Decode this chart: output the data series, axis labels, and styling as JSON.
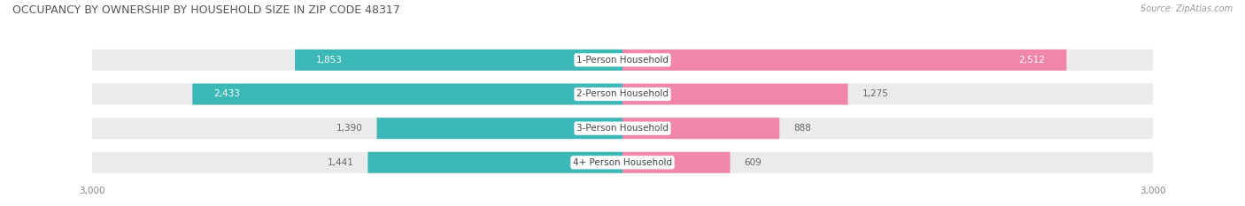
{
  "title": "OCCUPANCY BY OWNERSHIP BY HOUSEHOLD SIZE IN ZIP CODE 48317",
  "source": "Source: ZipAtlas.com",
  "categories": [
    "1-Person Household",
    "2-Person Household",
    "3-Person Household",
    "4+ Person Household"
  ],
  "owner_values": [
    1853,
    2433,
    1390,
    1441
  ],
  "renter_values": [
    2512,
    1275,
    888,
    609
  ],
  "max_val": 3000,
  "owner_color": "#3CB8B8",
  "renter_color": "#F087A8",
  "bar_bg_color": "#EBEBEB",
  "bar_bg_shadow": "#D8D8D8",
  "bg_color": "#FFFFFF",
  "bar_height": 0.62,
  "title_fontsize": 9.0,
  "source_fontsize": 7.0,
  "value_fontsize": 7.5,
  "category_fontsize": 7.5,
  "legend_fontsize": 7.5,
  "axis_label_fontsize": 7.5,
  "owner_text_threshold": 500,
  "renter_text_threshold": 1500
}
